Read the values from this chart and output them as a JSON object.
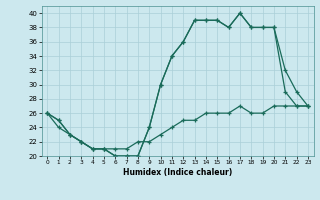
{
  "title": "",
  "xlabel": "Humidex (Indice chaleur)",
  "bg_color": "#cce8ee",
  "line_color": "#1a6b5a",
  "grid_color": "#aacfd8",
  "xlim": [
    -0.5,
    23.5
  ],
  "ylim": [
    20,
    41
  ],
  "xticks": [
    0,
    1,
    2,
    3,
    4,
    5,
    6,
    7,
    8,
    9,
    10,
    11,
    12,
    13,
    14,
    15,
    16,
    17,
    18,
    19,
    20,
    21,
    22,
    23
  ],
  "yticks": [
    20,
    22,
    24,
    26,
    28,
    30,
    32,
    34,
    36,
    38,
    40
  ],
  "line1_x": [
    0,
    1,
    2,
    3,
    4,
    5,
    6,
    7,
    8,
    9,
    10,
    11,
    12,
    13,
    14,
    15,
    16,
    17,
    18,
    19,
    20,
    21,
    22,
    23
  ],
  "line1_y": [
    26,
    25,
    23,
    22,
    21,
    21,
    20,
    20,
    20,
    24,
    30,
    34,
    36,
    39,
    39,
    39,
    38,
    40,
    38,
    38,
    38,
    29,
    27,
    27
  ],
  "line2_x": [
    0,
    1,
    2,
    3,
    4,
    5,
    6,
    7,
    8,
    9,
    10,
    11,
    12,
    13,
    14,
    15,
    16,
    17,
    18,
    19,
    20,
    21,
    22,
    23
  ],
  "line2_y": [
    26,
    25,
    23,
    22,
    21,
    21,
    20,
    20,
    20,
    24,
    30,
    34,
    36,
    39,
    39,
    39,
    38,
    40,
    38,
    38,
    38,
    32,
    29,
    27
  ],
  "line3_x": [
    0,
    1,
    2,
    3,
    4,
    5,
    6,
    7,
    8,
    9,
    10,
    11,
    12,
    13,
    14,
    15,
    16,
    17,
    18,
    19,
    20,
    21,
    22,
    23
  ],
  "line3_y": [
    26,
    24,
    23,
    22,
    21,
    21,
    21,
    21,
    22,
    22,
    23,
    24,
    25,
    25,
    26,
    26,
    26,
    27,
    26,
    26,
    27,
    27,
    27,
    27
  ]
}
